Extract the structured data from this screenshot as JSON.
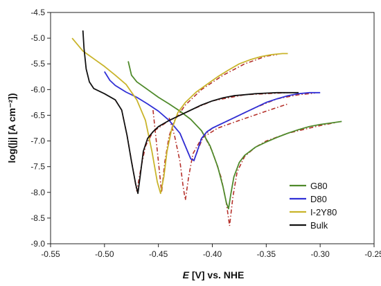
{
  "chart_data": {
    "type": "line",
    "title": "",
    "xlabel": {
      "italic": "E",
      "rest": " [V] vs. NHE"
    },
    "ylabel": "log(|j| [A cm⁻²])",
    "xlim": [
      -0.55,
      -0.25
    ],
    "ylim": [
      -9.0,
      -4.5
    ],
    "x_ticks": [
      "-0.55",
      "-0.50",
      "-0.45",
      "-0.40",
      "-0.35",
      "-0.30",
      "-0.25"
    ],
    "y_ticks": [
      "-4.5",
      "-5.0",
      "-5.5",
      "-6.0",
      "-6.5",
      "-7.0",
      "-7.5",
      "-8.0",
      "-8.5",
      "-9.0"
    ],
    "grid": false,
    "legend_position": "bottom-right",
    "fit_color": "#b5302a",
    "series": [
      {
        "name": "G80",
        "color": "#4f8a2b",
        "points": [
          [
            -0.478,
            -5.45
          ],
          [
            -0.475,
            -5.72
          ],
          [
            -0.47,
            -5.85
          ],
          [
            -0.46,
            -6.0
          ],
          [
            -0.45,
            -6.15
          ],
          [
            -0.44,
            -6.28
          ],
          [
            -0.43,
            -6.42
          ],
          [
            -0.42,
            -6.58
          ],
          [
            -0.41,
            -6.8
          ],
          [
            -0.402,
            -7.1
          ],
          [
            -0.395,
            -7.5
          ],
          [
            -0.39,
            -7.9
          ],
          [
            -0.387,
            -8.2
          ],
          [
            -0.385,
            -8.32
          ],
          [
            -0.383,
            -8.05
          ],
          [
            -0.38,
            -7.7
          ],
          [
            -0.375,
            -7.42
          ],
          [
            -0.37,
            -7.28
          ],
          [
            -0.36,
            -7.12
          ],
          [
            -0.35,
            -7.02
          ],
          [
            -0.34,
            -6.93
          ],
          [
            -0.33,
            -6.85
          ],
          [
            -0.32,
            -6.78
          ],
          [
            -0.31,
            -6.72
          ],
          [
            -0.3,
            -6.68
          ],
          [
            -0.29,
            -6.65
          ],
          [
            -0.28,
            -6.62
          ]
        ]
      },
      {
        "name": "D80",
        "color": "#2f2fd6",
        "points": [
          [
            -0.5,
            -5.65
          ],
          [
            -0.495,
            -5.82
          ],
          [
            -0.49,
            -5.92
          ],
          [
            -0.48,
            -6.05
          ],
          [
            -0.47,
            -6.15
          ],
          [
            -0.46,
            -6.28
          ],
          [
            -0.45,
            -6.42
          ],
          [
            -0.44,
            -6.6
          ],
          [
            -0.43,
            -6.85
          ],
          [
            -0.425,
            -7.1
          ],
          [
            -0.42,
            -7.35
          ],
          [
            -0.417,
            -7.38
          ],
          [
            -0.414,
            -7.2
          ],
          [
            -0.41,
            -6.95
          ],
          [
            -0.405,
            -6.82
          ],
          [
            -0.4,
            -6.75
          ],
          [
            -0.39,
            -6.65
          ],
          [
            -0.38,
            -6.55
          ],
          [
            -0.37,
            -6.45
          ],
          [
            -0.36,
            -6.35
          ],
          [
            -0.35,
            -6.25
          ],
          [
            -0.34,
            -6.18
          ],
          [
            -0.33,
            -6.12
          ],
          [
            -0.32,
            -6.08
          ],
          [
            -0.31,
            -6.06
          ],
          [
            -0.3,
            -6.06
          ]
        ]
      },
      {
        "name": "I-2Y80",
        "color": "#c9b42a",
        "points": [
          [
            -0.53,
            -5.0
          ],
          [
            -0.52,
            -5.25
          ],
          [
            -0.51,
            -5.4
          ],
          [
            -0.5,
            -5.55
          ],
          [
            -0.49,
            -5.72
          ],
          [
            -0.48,
            -5.9
          ],
          [
            -0.47,
            -6.2
          ],
          [
            -0.462,
            -6.6
          ],
          [
            -0.456,
            -7.2
          ],
          [
            -0.451,
            -7.8
          ],
          [
            -0.448,
            -8.02
          ],
          [
            -0.445,
            -7.7
          ],
          [
            -0.442,
            -7.2
          ],
          [
            -0.438,
            -6.8
          ],
          [
            -0.432,
            -6.45
          ],
          [
            -0.425,
            -6.25
          ],
          [
            -0.415,
            -6.05
          ],
          [
            -0.405,
            -5.9
          ],
          [
            -0.395,
            -5.75
          ],
          [
            -0.385,
            -5.62
          ],
          [
            -0.375,
            -5.5
          ],
          [
            -0.365,
            -5.42
          ],
          [
            -0.355,
            -5.36
          ],
          [
            -0.345,
            -5.32
          ],
          [
            -0.335,
            -5.3
          ],
          [
            -0.33,
            -5.3
          ]
        ]
      },
      {
        "name": "Bulk",
        "color": "#111111",
        "points": [
          [
            -0.52,
            -4.85
          ],
          [
            -0.519,
            -5.2
          ],
          [
            -0.517,
            -5.6
          ],
          [
            -0.514,
            -5.85
          ],
          [
            -0.51,
            -5.98
          ],
          [
            -0.5,
            -6.08
          ],
          [
            -0.49,
            -6.2
          ],
          [
            -0.484,
            -6.4
          ],
          [
            -0.479,
            -6.9
          ],
          [
            -0.475,
            -7.4
          ],
          [
            -0.471,
            -7.85
          ],
          [
            -0.469,
            -8.02
          ],
          [
            -0.467,
            -7.7
          ],
          [
            -0.464,
            -7.2
          ],
          [
            -0.46,
            -6.95
          ],
          [
            -0.455,
            -6.82
          ],
          [
            -0.45,
            -6.72
          ],
          [
            -0.44,
            -6.6
          ],
          [
            -0.43,
            -6.5
          ],
          [
            -0.42,
            -6.4
          ],
          [
            -0.41,
            -6.3
          ],
          [
            -0.4,
            -6.22
          ],
          [
            -0.39,
            -6.16
          ],
          [
            -0.38,
            -6.12
          ],
          [
            -0.37,
            -6.1
          ],
          [
            -0.36,
            -6.08
          ],
          [
            -0.35,
            -6.07
          ],
          [
            -0.34,
            -6.06
          ],
          [
            -0.33,
            -6.06
          ],
          [
            -0.32,
            -6.06
          ]
        ]
      }
    ],
    "fits": [
      {
        "for": "G80",
        "points": [
          [
            -0.41,
            -6.8
          ],
          [
            -0.4,
            -7.2
          ],
          [
            -0.392,
            -7.7
          ],
          [
            -0.387,
            -8.2
          ],
          [
            -0.384,
            -8.65
          ],
          [
            -0.381,
            -8.1
          ],
          [
            -0.377,
            -7.6
          ],
          [
            -0.37,
            -7.3
          ],
          [
            -0.36,
            -7.12
          ],
          [
            -0.35,
            -7.0
          ],
          [
            -0.33,
            -6.85
          ],
          [
            -0.3,
            -6.7
          ],
          [
            -0.285,
            -6.64
          ]
        ]
      },
      {
        "for": "D80",
        "points": [
          [
            -0.43,
            -6.85
          ],
          [
            -0.425,
            -7.1
          ],
          [
            -0.421,
            -7.3
          ],
          [
            -0.417,
            -7.38
          ],
          [
            -0.413,
            -7.15
          ],
          [
            -0.408,
            -6.9
          ],
          [
            -0.4,
            -6.75
          ],
          [
            -0.38,
            -6.55
          ],
          [
            -0.36,
            -6.35
          ],
          [
            -0.34,
            -6.18
          ],
          [
            -0.32,
            -6.1
          ],
          [
            -0.305,
            -6.07
          ]
        ]
      },
      {
        "for": "I-2Y80",
        "points": [
          [
            -0.455,
            -6.4
          ],
          [
            -0.452,
            -7.0
          ],
          [
            -0.449,
            -7.6
          ],
          [
            -0.447,
            -8.0
          ],
          [
            -0.444,
            -7.4
          ],
          [
            -0.44,
            -6.9
          ],
          [
            -0.435,
            -6.6
          ],
          [
            -0.425,
            -6.3
          ],
          [
            -0.41,
            -6.0
          ],
          [
            -0.39,
            -5.72
          ],
          [
            -0.37,
            -5.5
          ],
          [
            -0.35,
            -5.35
          ],
          [
            -0.34,
            -5.32
          ]
        ]
      },
      {
        "for": "Bulk",
        "points": [
          [
            -0.49,
            -6.2
          ],
          [
            -0.484,
            -6.4
          ],
          [
            -0.479,
            -6.9
          ],
          [
            -0.474,
            -7.5
          ],
          [
            -0.47,
            -7.98
          ],
          [
            -0.466,
            -7.5
          ],
          [
            -0.462,
            -7.1
          ],
          [
            -0.455,
            -6.82
          ],
          [
            -0.44,
            -6.6
          ],
          [
            -0.42,
            -6.4
          ],
          [
            -0.4,
            -6.22
          ],
          [
            -0.37,
            -6.1
          ],
          [
            -0.33,
            -6.06
          ]
        ]
      },
      {
        "for": "extra",
        "points": [
          [
            -0.44,
            -6.55
          ],
          [
            -0.435,
            -6.9
          ],
          [
            -0.43,
            -7.4
          ],
          [
            -0.427,
            -7.9
          ],
          [
            -0.425,
            -8.15
          ],
          [
            -0.422,
            -7.7
          ],
          [
            -0.418,
            -7.25
          ],
          [
            -0.41,
            -6.95
          ],
          [
            -0.395,
            -6.75
          ],
          [
            -0.375,
            -6.6
          ],
          [
            -0.35,
            -6.42
          ],
          [
            -0.33,
            -6.28
          ]
        ]
      }
    ]
  }
}
